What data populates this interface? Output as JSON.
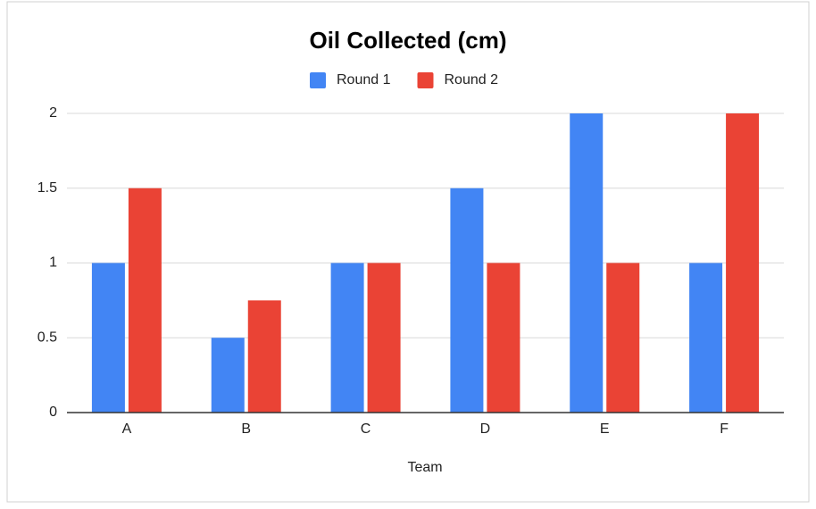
{
  "chart_data": {
    "type": "bar",
    "title": "Oil Collected (cm)",
    "x_label": "Team",
    "categories": [
      "A",
      "B",
      "C",
      "D",
      "E",
      "F"
    ],
    "series": [
      {
        "name": "Round 1",
        "color": "#4285f4",
        "values": [
          1,
          0.5,
          1,
          1.5,
          2,
          1
        ]
      },
      {
        "name": "Round 2",
        "color": "#ea4335",
        "values": [
          1.5,
          0.75,
          1,
          1,
          1,
          2
        ]
      }
    ],
    "ylim": [
      0,
      2
    ],
    "yticks": [
      0,
      0.5,
      1,
      1.5,
      2
    ],
    "grid": true,
    "legend": "top"
  }
}
